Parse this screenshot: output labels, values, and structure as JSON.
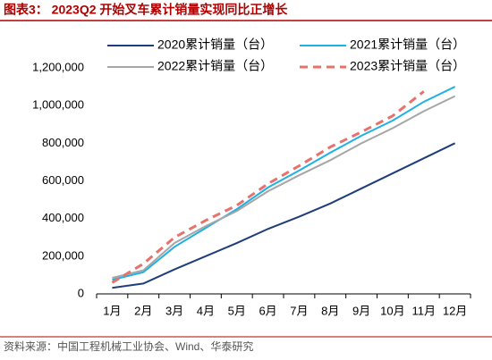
{
  "chart_data": {
    "type": "line",
    "title": "图表3： 2023Q2 开始叉车累计销量实现同比正增长",
    "source": "资料来源：中国工程机械工业协会、Wind、华泰研究",
    "categories": [
      "1月",
      "2月",
      "3月",
      "4月",
      "5月",
      "6月",
      "7月",
      "8月",
      "9月",
      "10月",
      "11月",
      "12月"
    ],
    "series": [
      {
        "name": "2020累计销量（台）",
        "color": "#1f3d7a",
        "dashed": false,
        "values": [
          32000,
          55000,
          130000,
          200000,
          270000,
          345000,
          410000,
          480000,
          560000,
          640000,
          720000,
          800000
        ]
      },
      {
        "name": "2021累计销量（台）",
        "color": "#1fb0e6",
        "dashed": false,
        "values": [
          75000,
          115000,
          250000,
          350000,
          450000,
          565000,
          655000,
          750000,
          840000,
          920000,
          1020000,
          1100000
        ]
      },
      {
        "name": "2022累计销量（台）",
        "color": "#a6a6a6",
        "dashed": false,
        "values": [
          85000,
          125000,
          270000,
          360000,
          440000,
          545000,
          630000,
          710000,
          800000,
          880000,
          970000,
          1050000
        ]
      },
      {
        "name": "2023累计销量（台）",
        "color": "#e8716b",
        "dashed": true,
        "values": [
          60000,
          160000,
          300000,
          390000,
          470000,
          585000,
          680000,
          780000,
          860000,
          945000,
          1075000,
          null
        ]
      }
    ],
    "ylim": [
      0,
      1200000
    ],
    "yticks": [
      0,
      {
        "value": 200000,
        "label": "200,000"
      },
      {
        "value": 400000,
        "label": "400,000"
      },
      {
        "value": 600000,
        "label": "600,000"
      },
      {
        "value": 800000,
        "label": "800,000"
      },
      {
        "value": 1000000,
        "label": "1,000,000"
      },
      {
        "value": 1200000,
        "label": "1,200,000"
      }
    ],
    "grid": false
  }
}
